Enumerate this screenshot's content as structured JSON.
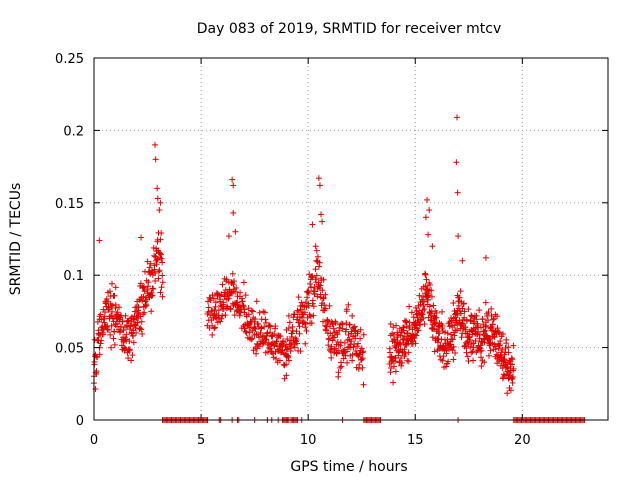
{
  "chart_data": {
    "type": "scatter",
    "title": "Day 083 of 2019, SRMTID for receiver mtcv",
    "xlabel": "GPS time / hours",
    "ylabel": "SRMTID / TECUs",
    "xlim": [
      0,
      24
    ],
    "ylim": [
      0,
      0.25
    ],
    "x_ticks": [
      0,
      5,
      10,
      15,
      20
    ],
    "y_ticks": [
      0,
      0.05,
      0.1,
      0.15,
      0.2,
      0.25
    ],
    "x_tick_labels": [
      "0",
      "5",
      "10",
      "15",
      "20"
    ],
    "y_tick_labels": [
      "0",
      "0.05",
      "0.1",
      "0.15",
      "0.2",
      "0.25"
    ],
    "grid": true,
    "marker": "+",
    "color": "#e00000",
    "series": [
      {
        "name": "SRMTID",
        "segments": [
          {
            "from": 0.0,
            "to": 3.2,
            "step": 0.025,
            "profile": [
              [
                0.0,
                0.035
              ],
              [
                0.3,
                0.065
              ],
              [
                0.6,
                0.075
              ],
              [
                1.0,
                0.07
              ],
              [
                1.5,
                0.055
              ],
              [
                2.0,
                0.07
              ],
              [
                2.5,
                0.09
              ],
              [
                3.0,
                0.115
              ],
              [
                3.2,
                0.1
              ]
            ],
            "spread": 0.018
          },
          {
            "from": 5.3,
            "to": 9.0,
            "step": 0.03,
            "profile": [
              [
                5.3,
                0.075
              ],
              [
                6.0,
                0.08
              ],
              [
                6.5,
                0.09
              ],
              [
                7.0,
                0.07
              ],
              [
                7.5,
                0.06
              ],
              [
                8.0,
                0.06
              ],
              [
                8.5,
                0.05
              ],
              [
                9.0,
                0.045
              ]
            ],
            "spread": 0.014
          },
          {
            "from": 9.0,
            "to": 12.6,
            "step": 0.028,
            "profile": [
              [
                9.0,
                0.05
              ],
              [
                9.5,
                0.065
              ],
              [
                10.0,
                0.08
              ],
              [
                10.5,
                0.1
              ],
              [
                11.0,
                0.06
              ],
              [
                11.5,
                0.05
              ],
              [
                12.0,
                0.06
              ],
              [
                12.6,
                0.045
              ]
            ],
            "spread": 0.017
          },
          {
            "from": 13.8,
            "to": 19.6,
            "step": 0.022,
            "profile": [
              [
                13.8,
                0.045
              ],
              [
                14.5,
                0.055
              ],
              [
                15.0,
                0.065
              ],
              [
                15.5,
                0.09
              ],
              [
                16.0,
                0.06
              ],
              [
                16.5,
                0.05
              ],
              [
                17.0,
                0.075
              ],
              [
                17.5,
                0.06
              ],
              [
                18.0,
                0.055
              ],
              [
                18.5,
                0.06
              ],
              [
                19.0,
                0.045
              ],
              [
                19.6,
                0.03
              ]
            ],
            "spread": 0.016
          }
        ],
        "peaks": [
          [
            2.85,
            0.19
          ],
          [
            2.88,
            0.18
          ],
          [
            2.95,
            0.16
          ],
          [
            2.98,
            0.153
          ],
          [
            3.05,
            0.145
          ],
          [
            3.1,
            0.15
          ],
          [
            0.25,
            0.124
          ],
          [
            2.2,
            0.126
          ],
          [
            6.45,
            0.166
          ],
          [
            6.5,
            0.162
          ],
          [
            6.5,
            0.143
          ],
          [
            6.6,
            0.13
          ],
          [
            6.3,
            0.127
          ],
          [
            7.6,
            0.082
          ],
          [
            7.0,
            0.095
          ],
          [
            10.5,
            0.167
          ],
          [
            10.55,
            0.162
          ],
          [
            10.6,
            0.142
          ],
          [
            10.2,
            0.135
          ],
          [
            10.35,
            0.12
          ],
          [
            10.65,
            0.137
          ],
          [
            15.55,
            0.152
          ],
          [
            15.65,
            0.145
          ],
          [
            15.5,
            0.14
          ],
          [
            15.6,
            0.128
          ],
          [
            15.8,
            0.12
          ],
          [
            16.95,
            0.209
          ],
          [
            16.92,
            0.178
          ],
          [
            16.98,
            0.157
          ],
          [
            17.0,
            0.127
          ],
          [
            17.2,
            0.11
          ],
          [
            18.3,
            0.112
          ]
        ],
        "floor_at_zero": [
          [
            3.2,
            5.3
          ],
          [
            5.85,
            5.95
          ],
          [
            6.45,
            6.5
          ],
          [
            6.7,
            6.8
          ],
          [
            7.5,
            7.55
          ],
          [
            8.1,
            8.15
          ],
          [
            8.3,
            8.35
          ],
          [
            8.6,
            8.65
          ],
          [
            8.8,
            9.1
          ],
          [
            9.2,
            9.5
          ],
          [
            9.7,
            9.75
          ],
          [
            11.6,
            11.62
          ],
          [
            12.6,
            13.4
          ],
          [
            17.0,
            17.05
          ],
          [
            19.6,
            22.9
          ]
        ]
      }
    ]
  }
}
